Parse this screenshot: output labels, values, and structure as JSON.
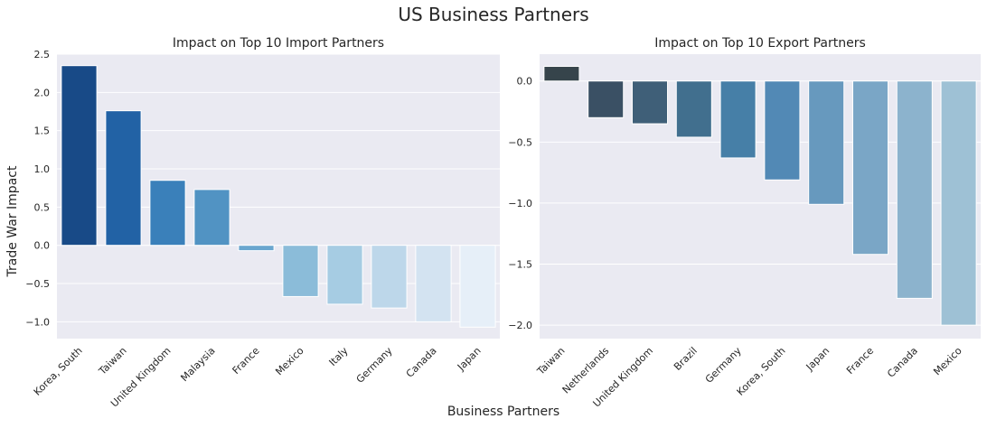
{
  "suptitle": "US Business Partners",
  "ylabel": "Trade War Impact",
  "xlabel": "Business Partners",
  "chart_data": [
    {
      "type": "bar",
      "title": "Impact on Top 10 Import Partners",
      "categories": [
        "Korea, South",
        "Taiwan",
        "United Kingdom",
        "Malaysia",
        "France",
        "Mexico",
        "Italy",
        "Germany",
        "Canada",
        "Japan"
      ],
      "values": [
        2.35,
        1.76,
        0.85,
        0.73,
        -0.07,
        -0.67,
        -0.77,
        -0.82,
        -1.0,
        -1.07
      ],
      "colors": [
        "#184a87",
        "#2262a5",
        "#3a80ba",
        "#5193c3",
        "#6aa6cf",
        "#8bbcd9",
        "#a6cce3",
        "#bdd7ea",
        "#d3e3f1",
        "#e6eff8"
      ],
      "ylim": [
        -1.22,
        2.5
      ],
      "yticks": [
        -1.0,
        -0.5,
        0.0,
        0.5,
        1.0,
        1.5,
        2.0,
        2.5
      ],
      "ytick_labels": [
        "−1.0",
        "−0.5",
        "0.0",
        "0.5",
        "1.0",
        "1.5",
        "2.0",
        "2.5"
      ],
      "grid": true
    },
    {
      "type": "bar",
      "title": "Impact on Top 10 Export Partners",
      "categories": [
        "Taiwan",
        "Netherlands",
        "United Kingdom",
        "Brazil",
        "Germany",
        "Korea, South",
        "Japan",
        "France",
        "Canada",
        "Mexico"
      ],
      "values": [
        0.12,
        -0.3,
        -0.35,
        -0.46,
        -0.63,
        -0.81,
        -1.01,
        -1.42,
        -1.78,
        -2.0
      ],
      "colors": [
        "#36444b",
        "#3a5064",
        "#3f5f78",
        "#416f8e",
        "#467fa7",
        "#5289b5",
        "#6799be",
        "#7aa6c6",
        "#8cb3cd",
        "#9ec1d5"
      ],
      "ylim": [
        -2.11,
        0.22
      ],
      "yticks": [
        -2.0,
        -1.5,
        -1.0,
        -0.5,
        0.0
      ],
      "ytick_labels": [
        "−2.0",
        "−1.5",
        "−1.0",
        "−0.5",
        "0.0"
      ],
      "grid": true
    }
  ]
}
